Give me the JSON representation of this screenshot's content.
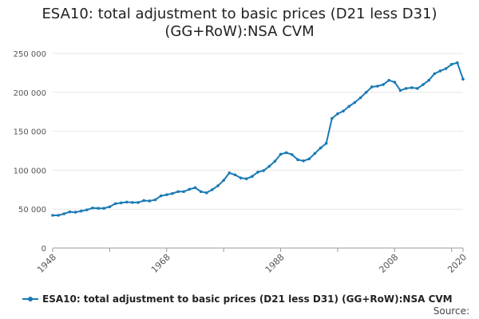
{
  "chart_data": {
    "type": "line",
    "title_lines": [
      "ESA10: total adjustment to basic prices (D21 less D31)",
      "(GG+RoW):NSA CVM"
    ],
    "xlabel": "",
    "ylabel": "",
    "x_range": [
      1948,
      2020
    ],
    "y_range": [
      0,
      250000
    ],
    "y_ticks": [
      0,
      50000,
      100000,
      150000,
      200000,
      250000
    ],
    "y_tick_labels": [
      "0",
      "50 000",
      "100 000",
      "150 000",
      "200 000",
      "250 000"
    ],
    "x_ticks": [
      1948,
      1968,
      1988,
      2008,
      2020
    ],
    "x_tick_labels": [
      "1948",
      "1968",
      "1988",
      "2008",
      "2020"
    ],
    "grid": true,
    "legend_position": "bottom",
    "source_label": "Source:",
    "colors": {
      "line": "#1a7ab6",
      "grid": "#e6e6e6",
      "axis": "#999999"
    },
    "series": [
      {
        "name": "ESA10: total adjustment to basic prices (D21 less D31) (GG+RoW):NSA CVM",
        "x": [
          1948,
          1949,
          1950,
          1951,
          1952,
          1953,
          1954,
          1955,
          1956,
          1957,
          1958,
          1959,
          1960,
          1961,
          1962,
          1963,
          1964,
          1965,
          1966,
          1967,
          1968,
          1969,
          1970,
          1971,
          1972,
          1973,
          1974,
          1975,
          1976,
          1977,
          1978,
          1979,
          1980,
          1981,
          1982,
          1983,
          1984,
          1985,
          1986,
          1987,
          1988,
          1989,
          1990,
          1991,
          1992,
          1993,
          1994,
          1995,
          1996,
          1997,
          1998,
          1999,
          2000,
          2001,
          2002,
          2003,
          2004,
          2005,
          2006,
          2007,
          2008,
          2009,
          2010,
          2011,
          2012,
          2013,
          2014,
          2015,
          2016,
          2017,
          2018,
          2019,
          2020
        ],
        "values": [
          42000,
          42000,
          44000,
          46500,
          46000,
          47500,
          49000,
          51500,
          51000,
          51000,
          53000,
          57000,
          58000,
          59000,
          58500,
          58500,
          61000,
          60500,
          62000,
          67000,
          68500,
          70000,
          72500,
          72500,
          75500,
          77500,
          72500,
          71000,
          75000,
          80000,
          87000,
          96500,
          94000,
          90000,
          89000,
          92000,
          97500,
          99500,
          105000,
          111500,
          120500,
          122500,
          120000,
          113500,
          112000,
          114500,
          121500,
          128500,
          134500,
          166500,
          172500,
          176000,
          182000,
          187000,
          193000,
          200000,
          207000,
          208000,
          210000,
          215500,
          213000,
          202500,
          205000,
          206000,
          205000,
          210000,
          215500,
          224000,
          227500,
          230500,
          236000,
          238000,
          217000
        ]
      }
    ]
  }
}
